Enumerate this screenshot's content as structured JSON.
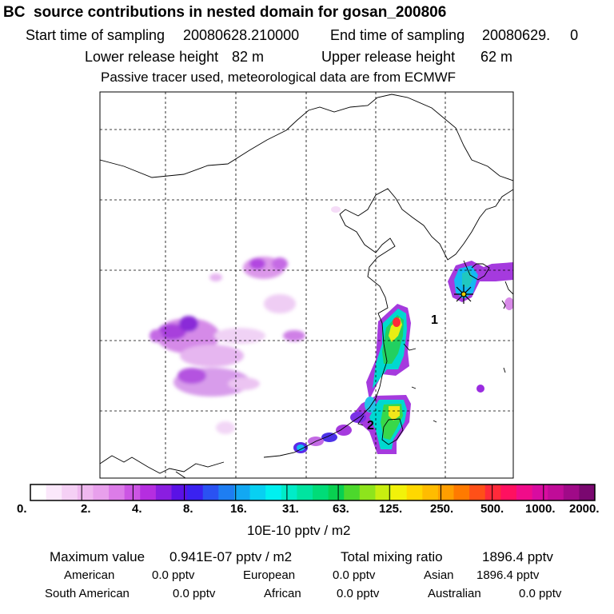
{
  "header": {
    "title": "BC  source contributions in nested domain for gosan_200806",
    "start_label": "Start time of sampling",
    "start_value": "20080628.210000",
    "end_label": "End time of sampling",
    "end_value": "20080629.     0",
    "lower_label": "Lower release height",
    "lower_value": "82 m",
    "upper_label": "Upper release height",
    "upper_value": "62 m",
    "note": "Passive tracer used, meteorological data are from ECMWF"
  },
  "map": {
    "markers": [
      "1",
      "2"
    ],
    "receptor_symbol": "gosan-receptor"
  },
  "colorbar": {
    "colors": [
      "#ffffff",
      "#fbe8fb",
      "#f5d0f5",
      "#efb8ef",
      "#e8a0ec",
      "#dc7ce8",
      "#cc55e4",
      "#b52ee0",
      "#8a1ee0",
      "#5a12e6",
      "#3a22f0",
      "#2a52f2",
      "#1e7ef2",
      "#12a8f2",
      "#08d0f2",
      "#00f0f0",
      "#00ecc8",
      "#00e4a0",
      "#00dc78",
      "#08d050",
      "#4cd82c",
      "#8ee41c",
      "#c8ee10",
      "#f2f20a",
      "#ffd800",
      "#ffbc00",
      "#ff9e00",
      "#ff7a00",
      "#ff5018",
      "#ff2a3a",
      "#ff1060",
      "#f00c8a",
      "#d80ca0",
      "#c00c98",
      "#a00a88",
      "#7a0870"
    ],
    "labels": [
      "0.",
      "2.",
      "4.",
      "8.",
      "16.",
      "31.",
      "63.",
      "125.",
      "250.",
      "500.",
      "1000.",
      "2000."
    ],
    "units": "10E-10 pptv / m2"
  },
  "stats": {
    "max_label": "Maximum value",
    "max_value": "0.941E-07 pptv / m2",
    "total_label": "Total mixing ratio",
    "total_value": "1896.4 pptv",
    "american_label": "American",
    "american_value": "0.0 pptv",
    "european_label": "European",
    "european_value": "0.0 pptv",
    "asian_label": "Asian",
    "asian_value": "1896.4 pptv",
    "south_american_label": "South American",
    "south_american_value": "0.0 pptv",
    "african_label": "African",
    "african_value": "0.0 pptv",
    "australian_label": "Australian",
    "australian_value": "0.0 pptv"
  }
}
